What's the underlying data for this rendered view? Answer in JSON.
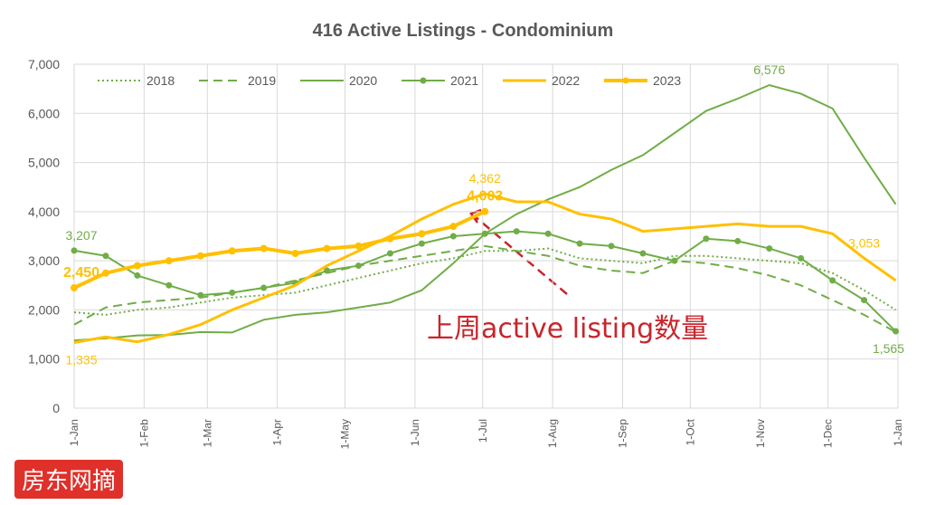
{
  "chart_data": {
    "type": "line",
    "title": "416 Active Listings - Condominium",
    "x": [
      0,
      14,
      28,
      42,
      56,
      70,
      84,
      98,
      112,
      126,
      140,
      154,
      168,
      182,
      196,
      210,
      224,
      238,
      252,
      266,
      280,
      294,
      308,
      322,
      336,
      350,
      364
    ],
    "xlim": [
      0,
      365
    ],
    "xticks": [
      {
        "value": 0,
        "label": "1-Jan"
      },
      {
        "value": 31,
        "label": "1-Feb"
      },
      {
        "value": 59,
        "label": "1-Mar"
      },
      {
        "value": 90,
        "label": "1-Apr"
      },
      {
        "value": 120,
        "label": "1-May"
      },
      {
        "value": 151,
        "label": "1-Jun"
      },
      {
        "value": 181,
        "label": "1-Jul"
      },
      {
        "value": 212,
        "label": "1-Aug"
      },
      {
        "value": 243,
        "label": "1-Sep"
      },
      {
        "value": 273,
        "label": "1-Oct"
      },
      {
        "value": 304,
        "label": "1-Nov"
      },
      {
        "value": 334,
        "label": "1-Dec"
      },
      {
        "value": 365,
        "label": "1-Jan"
      }
    ],
    "ylim": [
      0,
      7000
    ],
    "yticks": [
      0,
      {
        "value": 1000,
        "label": "1,000"
      },
      {
        "value": 2000,
        "label": "2,000"
      },
      {
        "value": 3000,
        "label": "3,000"
      },
      {
        "value": 4000,
        "label": "4,000"
      },
      {
        "value": 5000,
        "label": "5,000"
      },
      {
        "value": 6000,
        "label": "6,000"
      },
      {
        "value": 7000,
        "label": "7,000"
      }
    ],
    "grid": true,
    "legend": "top",
    "series": [
      {
        "name": "2018",
        "color": "#70ad47",
        "style": "dotted",
        "marker": false,
        "width": 2,
        "values": [
          1950,
          1900,
          2000,
          2050,
          2150,
          2250,
          2300,
          2350,
          2500,
          2650,
          2800,
          2950,
          3050,
          3200,
          3200,
          3250,
          3050,
          3000,
          2950,
          3100,
          3100,
          3050,
          3000,
          2950,
          2750,
          2400,
          2000
        ]
      },
      {
        "name": "2019",
        "color": "#70ad47",
        "style": "dashed",
        "marker": false,
        "width": 2,
        "values": [
          1700,
          2050,
          2150,
          2200,
          2250,
          2350,
          2450,
          2600,
          2750,
          2900,
          3000,
          3100,
          3200,
          3300,
          3200,
          3100,
          2900,
          2800,
          2750,
          3000,
          2950,
          2850,
          2700,
          2500,
          2200,
          1900,
          1550
        ]
      },
      {
        "name": "2020",
        "color": "#70ad47",
        "style": "solid",
        "marker": false,
        "width": 2,
        "values": [
          1380,
          1420,
          1480,
          1490,
          1550,
          1540,
          1800,
          1900,
          1950,
          2050,
          2150,
          2400,
          2950,
          3550,
          3950,
          4250,
          4500,
          4850,
          5150,
          5600,
          6050,
          6300,
          6576,
          6400,
          6100,
          5100,
          4150
        ],
        "value_labels": [
          null,
          null,
          null,
          null,
          null,
          null,
          null,
          null,
          null,
          null,
          null,
          null,
          null,
          null,
          null,
          null,
          null,
          null,
          null,
          null,
          null,
          null,
          "6,576",
          null,
          null,
          null,
          null
        ]
      },
      {
        "name": "2021",
        "color": "#70ad47",
        "style": "solid",
        "marker": true,
        "width": 2,
        "values": [
          3207,
          3100,
          2700,
          2500,
          2300,
          2350,
          2450,
          2550,
          2800,
          2900,
          3150,
          3350,
          3500,
          3550,
          3600,
          3550,
          3350,
          3300,
          3150,
          3000,
          3450,
          3400,
          3250,
          3050,
          2600,
          2200,
          1565
        ],
        "value_labels": [
          "3,207",
          null,
          null,
          null,
          null,
          null,
          null,
          null,
          null,
          null,
          null,
          null,
          null,
          null,
          null,
          null,
          null,
          null,
          null,
          null,
          null,
          null,
          null,
          null,
          null,
          null,
          "1,565"
        ]
      },
      {
        "name": "2022",
        "color": "#ffc000",
        "style": "solid",
        "marker": false,
        "width": 3,
        "values": [
          1335,
          1450,
          1350,
          1500,
          1700,
          2000,
          2250,
          2500,
          2900,
          3200,
          3500,
          3850,
          4150,
          4362,
          4200,
          4200,
          3950,
          3850,
          3600,
          3650,
          3700,
          3750,
          3700,
          3700,
          3550,
          3053,
          2600
        ],
        "value_labels": [
          "1,335",
          null,
          null,
          null,
          null,
          null,
          null,
          null,
          null,
          null,
          null,
          null,
          null,
          "4,362",
          null,
          null,
          null,
          null,
          null,
          null,
          null,
          null,
          null,
          null,
          null,
          "3,053",
          null
        ]
      },
      {
        "name": "2023",
        "color": "#ffc000",
        "style": "solid",
        "marker": true,
        "width": 4,
        "values": [
          2450,
          2750,
          2900,
          3000,
          3100,
          3200,
          3250,
          3150,
          3250,
          3300,
          3450,
          3550,
          3700,
          4003,
          null,
          null,
          null,
          null,
          null,
          null,
          null,
          null,
          null,
          null,
          null,
          null,
          null
        ],
        "value_labels": [
          "2,450",
          null,
          null,
          null,
          null,
          null,
          null,
          null,
          null,
          null,
          null,
          null,
          null,
          "4,003",
          null,
          null,
          null,
          null,
          null,
          null,
          null,
          null,
          null,
          null,
          null,
          null,
          null
        ]
      }
    ]
  },
  "annotation": "上周active listing数量",
  "watermark": "房东网摘"
}
